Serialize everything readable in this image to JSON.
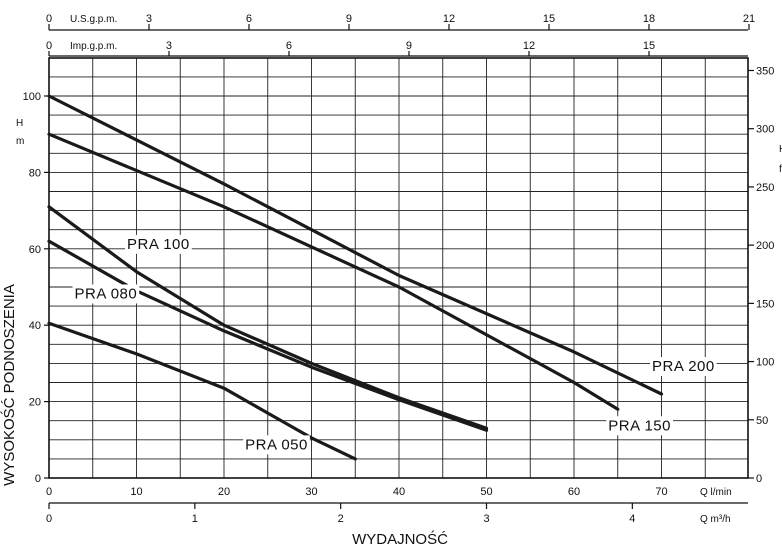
{
  "chart_data": {
    "type": "line",
    "xlabel": "WYDAJNOŚĆ",
    "ylabel": "WYSOKOŚĆ PODNOSZENIA",
    "y_unit": "H\nm",
    "x_unit_lmin": "Q l/min",
    "x_unit_m3h": "Q m³/h",
    "xlim": [
      0,
      80
    ],
    "ylim": [
      0,
      110
    ],
    "x_ticks_lmin": [
      "0",
      "10",
      "20",
      "30",
      "40",
      "50",
      "60",
      "70"
    ],
    "x_ticks_m3h": [
      "0",
      "1",
      "2",
      "3",
      "4"
    ],
    "y_ticks_m": [
      "0",
      "20",
      "40",
      "60",
      "80",
      "100"
    ],
    "y_ticks_ft": [
      "0",
      "50",
      "100",
      "150",
      "200",
      "250",
      "300",
      "350"
    ],
    "top_axis_usgpm": {
      "label": "U.S.g.p.m.",
      "ticks": [
        "0",
        "3",
        "6",
        "9",
        "12",
        "15",
        "18",
        "21"
      ]
    },
    "top_axis_impgpm": {
      "label": "Imp.g.p.m.",
      "ticks": [
        "0",
        "3",
        "6",
        "9",
        "12",
        "15"
      ]
    },
    "right_axis_unit": "H\nft",
    "series": [
      {
        "name": "PRA 050",
        "x": [
          0,
          10,
          20,
          25,
          30,
          35
        ],
        "y": [
          40.5,
          32.5,
          23.5,
          17,
          10.5,
          5
        ]
      },
      {
        "name": "PRA 080",
        "x": [
          0,
          10,
          20,
          30,
          40,
          50
        ],
        "y": [
          62,
          49,
          38.5,
          29,
          20.5,
          12.5
        ]
      },
      {
        "name": "PRA 100",
        "x": [
          0,
          10,
          20,
          30,
          40,
          50
        ],
        "y": [
          71,
          54,
          40,
          30,
          21,
          13
        ]
      },
      {
        "name": "PRA 150",
        "x": [
          0,
          20,
          40,
          60,
          65
        ],
        "y": [
          90,
          71,
          50,
          25,
          18
        ]
      },
      {
        "name": "PRA 200",
        "x": [
          0,
          20,
          40,
          60,
          70
        ],
        "y": [
          100,
          77,
          53,
          33,
          22
        ]
      }
    ]
  }
}
